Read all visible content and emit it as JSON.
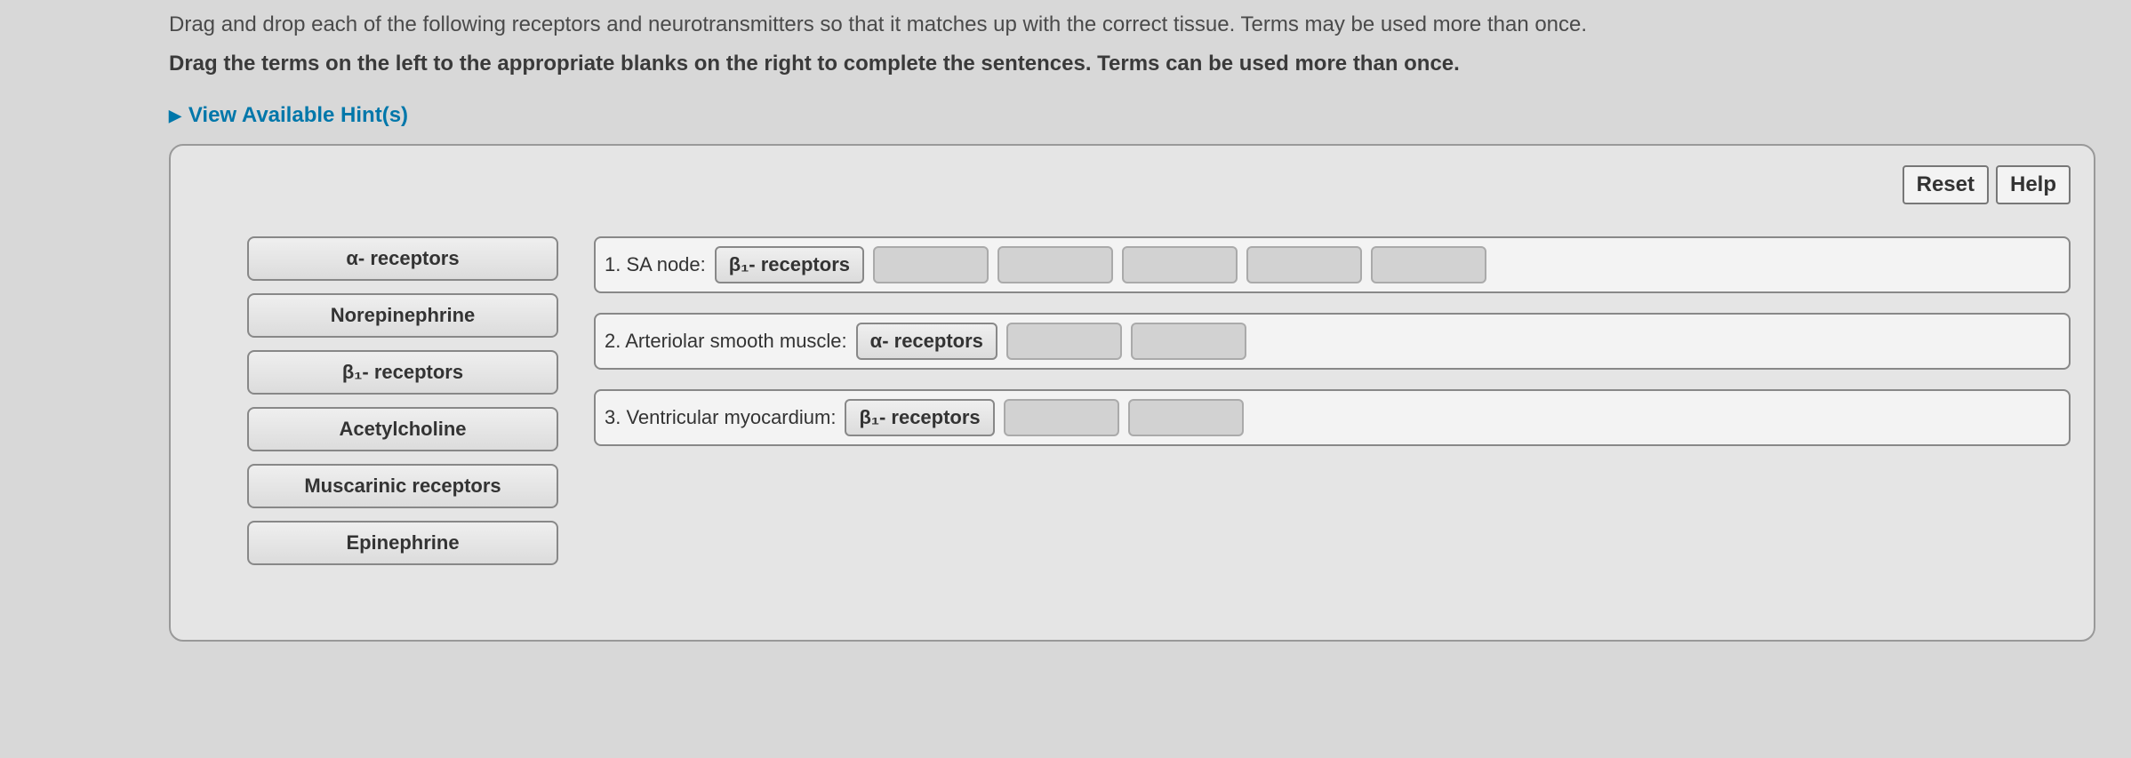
{
  "instructions": {
    "line1": "Drag and drop each of the following receptors and neurotransmitters so that it matches up with the correct tissue. Terms may be used more than once.",
    "line2": "Drag the terms on the left to the appropriate blanks on the right to complete the sentences. Terms can be used more than once."
  },
  "hints_label": "View Available Hint(s)",
  "buttons": {
    "reset": "Reset",
    "help": "Help"
  },
  "terms": [
    {
      "label": "α- receptors"
    },
    {
      "label": "Norepinephrine"
    },
    {
      "label": "β₁- receptors"
    },
    {
      "label": "Acetylcholine"
    },
    {
      "label": "Muscarinic receptors"
    },
    {
      "label": "Epinephrine"
    }
  ],
  "sentences": [
    {
      "prefix": "1. SA node:",
      "filled": "β₁- receptors",
      "blanks": 5
    },
    {
      "prefix": "2. Arteriolar smooth muscle:",
      "filled": "α- receptors",
      "blanks": 2
    },
    {
      "prefix": "3. Ventricular myocardium:",
      "filled": "β₁- receptors",
      "blanks": 2
    }
  ],
  "colors": {
    "background": "#d8d8d8",
    "panel_bg": "#e5e5e5",
    "border": "#888888",
    "link": "#0077aa",
    "term_bg_top": "#efefef",
    "term_bg_bottom": "#dcdcdc",
    "blank_bg": "#d2d2d2"
  }
}
